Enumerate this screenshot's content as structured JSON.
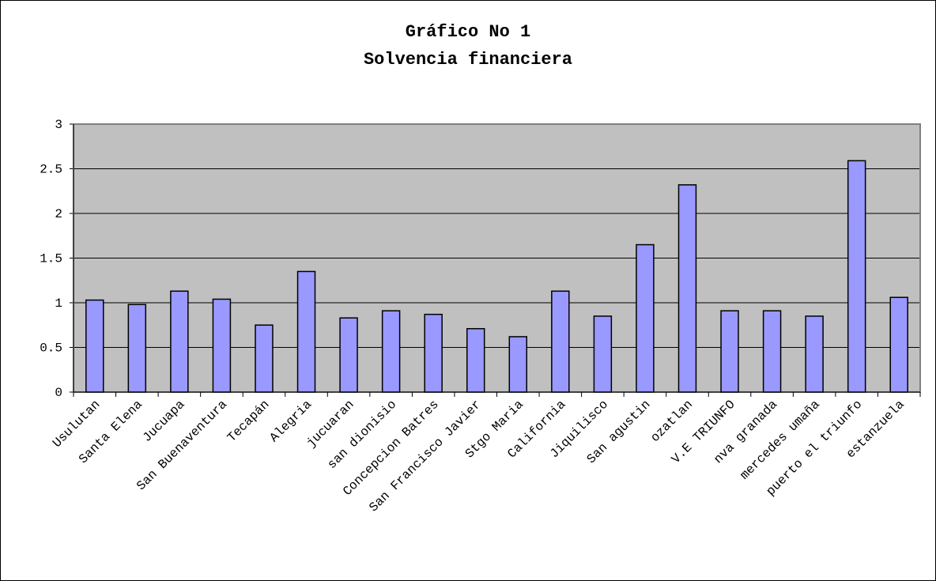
{
  "chart_data": {
    "type": "bar",
    "title": "Gráfico No 1",
    "subtitle": "Solvencia financiera",
    "xlabel": "",
    "ylabel": "",
    "ylim": [
      0,
      3
    ],
    "yticks": [
      "0",
      "0.5",
      "1",
      "1.5",
      "2",
      "2.5",
      "3"
    ],
    "grid": true,
    "legend": "none",
    "colors": {
      "bar": "#9999ff",
      "plot_bg": "#c0c0c0",
      "plot_border": "#808080"
    },
    "categories": [
      "Usulutan",
      "Santa Elena",
      "Jucuapa",
      "San Buenaventura",
      "Tecapán",
      "Alegria",
      "jucuaran",
      "san dionisio",
      "Concepcion Batres",
      "San Francisco Javier",
      "Stgo Maria",
      "California",
      "Jiquilisco",
      "San agustin",
      "ozatlan",
      "V.E TRIUNFO",
      "nva granada",
      "mercedes umaña",
      "puerto el triunfo",
      "estanzuela"
    ],
    "values": [
      1.03,
      0.98,
      1.13,
      1.04,
      0.75,
      1.35,
      0.83,
      0.91,
      0.87,
      0.71,
      0.62,
      1.13,
      0.85,
      1.65,
      2.32,
      0.91,
      0.91,
      0.85,
      2.59,
      1.06
    ]
  }
}
